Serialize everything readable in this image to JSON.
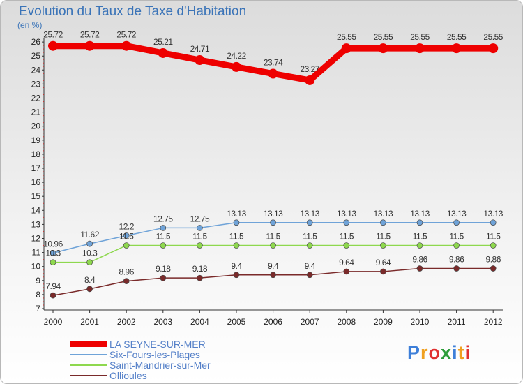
{
  "title": "Evolution du Taux de Taxe d'Habitation",
  "unit": "(en %)",
  "brand": "Proxiti",
  "chart_data": {
    "type": "line",
    "title": "Evolution du Taux de Taxe d'Habitation",
    "ylabel": "(en %)",
    "xlabel": "",
    "x": [
      "2000",
      "2001",
      "2002",
      "2003",
      "2004",
      "2005",
      "2006",
      "2007",
      "2008",
      "2009",
      "2010",
      "2011",
      "2012"
    ],
    "ylim": [
      7,
      26
    ],
    "yticks": [
      "7",
      "8",
      "9",
      "10",
      "11",
      "12",
      "13",
      "14",
      "15",
      "16",
      "17",
      "18",
      "19",
      "20",
      "21",
      "22",
      "23",
      "24",
      "25",
      "26"
    ],
    "grid": false,
    "legend": "bottom-left",
    "series": [
      {
        "name": "LA SEYNE-SUR-MER",
        "color": "#ee0000",
        "values": [
          25.72,
          25.72,
          25.72,
          25.21,
          24.71,
          24.22,
          23.74,
          23.27,
          25.55,
          25.55,
          25.55,
          25.55,
          25.55
        ],
        "labels": [
          "25.72",
          "25.72",
          "25.72",
          "25.21",
          "24.71",
          "24.22",
          "23.74",
          "23.27",
          "25.55",
          "25.55",
          "25.55",
          "25.55",
          "25.55"
        ]
      },
      {
        "name": "Six-Fours-les-Plages",
        "color": "#6fa3d8",
        "values": [
          10.96,
          11.62,
          12.2,
          12.75,
          12.75,
          13.13,
          13.13,
          13.13,
          13.13,
          13.13,
          13.13,
          13.13,
          13.13
        ],
        "labels": [
          "10.96",
          "11.62",
          "12.2",
          "12.75",
          "12.75",
          "13.13",
          "13.13",
          "13.13",
          "13.13",
          "13.13",
          "13.13",
          "13.13",
          "13.13"
        ]
      },
      {
        "name": "Saint-Mandrier-sur-Mer",
        "color": "#8ed84e",
        "values": [
          10.3,
          10.3,
          11.5,
          11.5,
          11.5,
          11.5,
          11.5,
          11.5,
          11.5,
          11.5,
          11.5,
          11.5,
          11.5
        ],
        "labels": [
          "10.3",
          "10.3",
          "11.5",
          "11.5",
          "11.5",
          "11.5",
          "11.5",
          "11.5",
          "11.5",
          "11.5",
          "11.5",
          "11.5",
          "11.5"
        ]
      },
      {
        "name": "Ollioules",
        "color": "#7a2a2a",
        "values": [
          7.94,
          8.4,
          8.96,
          9.18,
          9.18,
          9.4,
          9.4,
          9.4,
          9.64,
          9.64,
          9.86,
          9.86,
          9.86
        ],
        "labels": [
          "7.94",
          "8.4",
          "8.96",
          "9.18",
          "9.18",
          "9.4",
          "9.4",
          "9.4",
          "9.64",
          "9.64",
          "9.86",
          "9.86",
          "9.86"
        ]
      }
    ]
  }
}
